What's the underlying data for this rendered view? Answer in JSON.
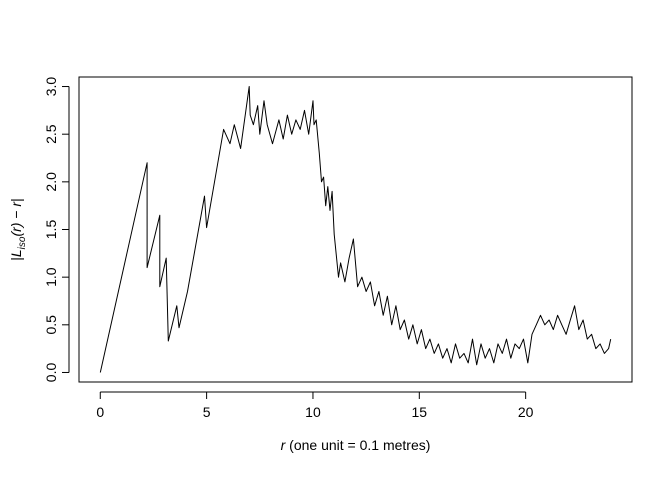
{
  "chart_data": {
    "type": "line",
    "title": "",
    "xlabel_var": "r",
    "xlabel_rest": " (one unit = 0.1 metres)",
    "ylabel": "|L_iso(r) − r|",
    "ylabel_parts": {
      "bar_left": "|",
      "L": "L",
      "sub": "iso",
      "arg": "(r)",
      "minus": " − ",
      "r": "r",
      "bar_right": "|"
    },
    "xlim": [
      -1,
      25
    ],
    "ylim": [
      -0.1,
      3.1
    ],
    "xticks": [
      0,
      5,
      10,
      15,
      20
    ],
    "xtick_labels": [
      "0",
      "5",
      "10",
      "15",
      "20"
    ],
    "yticks": [
      0.0,
      0.5,
      1.0,
      1.5,
      2.0,
      2.5,
      3.0
    ],
    "ytick_labels": [
      "0.0",
      "0.5",
      "1.0",
      "1.5",
      "2.0",
      "2.5",
      "3.0"
    ],
    "grid": false,
    "legend": "none",
    "line_color": "#000000",
    "series": [
      {
        "x": [
          0.0,
          2.2,
          2.2,
          2.8,
          2.8,
          3.1,
          3.2,
          3.6,
          3.7,
          4.1,
          4.9,
          5.0,
          5.8,
          6.1,
          6.3,
          6.6,
          7.0,
          7.05,
          7.2,
          7.4,
          7.5,
          7.7,
          7.85,
          8.1,
          8.4,
          8.6,
          8.8,
          9.0,
          9.2,
          9.4,
          9.6,
          9.8,
          10.0,
          10.05,
          10.15,
          10.3,
          10.4,
          10.5,
          10.6,
          10.7,
          10.8,
          10.9,
          11.0,
          11.2,
          11.3,
          11.5,
          11.7,
          11.9,
          12.1,
          12.3,
          12.5,
          12.7,
          12.9,
          13.1,
          13.3,
          13.5,
          13.7,
          13.9,
          14.1,
          14.3,
          14.5,
          14.7,
          14.9,
          15.1,
          15.3,
          15.5,
          15.7,
          15.9,
          16.1,
          16.3,
          16.5,
          16.7,
          16.9,
          17.1,
          17.3,
          17.5,
          17.7,
          17.9,
          18.1,
          18.3,
          18.5,
          18.7,
          18.9,
          19.1,
          19.3,
          19.5,
          19.7,
          19.9,
          20.1,
          20.3,
          20.5,
          20.7,
          20.9,
          21.1,
          21.3,
          21.5,
          21.7,
          21.9,
          22.1,
          22.3,
          22.5,
          22.7,
          22.9,
          23.1,
          23.3,
          23.5,
          23.7,
          23.9,
          24.0
        ],
        "y": [
          0.0,
          2.2,
          1.1,
          1.65,
          0.9,
          1.2,
          0.33,
          0.7,
          0.47,
          0.85,
          1.85,
          1.52,
          2.55,
          2.4,
          2.6,
          2.35,
          3.0,
          2.7,
          2.6,
          2.8,
          2.5,
          2.85,
          2.6,
          2.4,
          2.65,
          2.45,
          2.7,
          2.5,
          2.65,
          2.55,
          2.75,
          2.5,
          2.85,
          2.6,
          2.65,
          2.3,
          2.0,
          2.05,
          1.75,
          1.95,
          1.7,
          1.9,
          1.45,
          1.0,
          1.15,
          0.95,
          1.2,
          1.4,
          0.9,
          1.0,
          0.85,
          0.95,
          0.7,
          0.85,
          0.6,
          0.8,
          0.5,
          0.7,
          0.45,
          0.55,
          0.35,
          0.5,
          0.3,
          0.45,
          0.25,
          0.35,
          0.2,
          0.3,
          0.15,
          0.25,
          0.1,
          0.3,
          0.15,
          0.2,
          0.1,
          0.35,
          0.08,
          0.3,
          0.15,
          0.25,
          0.1,
          0.3,
          0.2,
          0.35,
          0.15,
          0.3,
          0.25,
          0.35,
          0.1,
          0.4,
          0.5,
          0.6,
          0.5,
          0.55,
          0.45,
          0.6,
          0.5,
          0.4,
          0.55,
          0.7,
          0.45,
          0.55,
          0.35,
          0.4,
          0.25,
          0.3,
          0.2,
          0.25,
          0.35
        ]
      }
    ]
  }
}
